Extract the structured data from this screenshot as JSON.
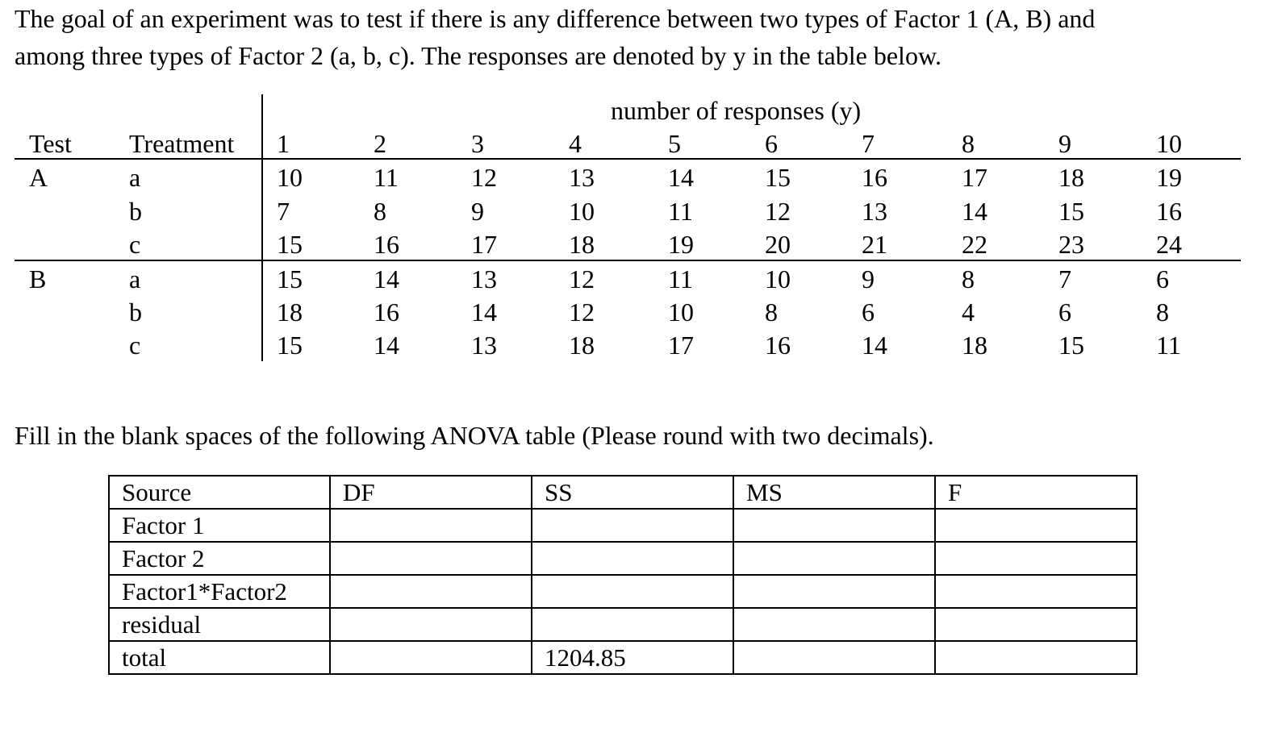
{
  "intro": {
    "line1": "The goal of an experiment was to test if there is any difference between two types of Factor 1 (A, B) and",
    "line2": "among three types of Factor 2 (a, b, c). The responses are denoted by y in the table below."
  },
  "data_table": {
    "group_header": "number of responses (y)",
    "test_header": "Test",
    "treatment_header": "Treatment",
    "columns": [
      "1",
      "2",
      "3",
      "4",
      "5",
      "6",
      "7",
      "8",
      "9",
      "10"
    ],
    "rows": [
      {
        "test": "A",
        "treatment": "a",
        "values": [
          "10",
          "11",
          "12",
          "13",
          "14",
          "15",
          "16",
          "17",
          "18",
          "19"
        ]
      },
      {
        "test": "",
        "treatment": "b",
        "values": [
          "7",
          "8",
          "9",
          "10",
          "11",
          "12",
          "13",
          "14",
          "15",
          "16"
        ]
      },
      {
        "test": "",
        "treatment": "c",
        "values": [
          "15",
          "16",
          "17",
          "18",
          "19",
          "20",
          "21",
          "22",
          "23",
          "24"
        ]
      },
      {
        "test": "B",
        "treatment": "a",
        "values": [
          "15",
          "14",
          "13",
          "12",
          "11",
          "10",
          "9",
          "8",
          "7",
          "6"
        ]
      },
      {
        "test": "",
        "treatment": "b",
        "values": [
          "18",
          "16",
          "14",
          "12",
          "10",
          "8",
          "6",
          "4",
          "6",
          "8"
        ]
      },
      {
        "test": "",
        "treatment": "c",
        "values": [
          "15",
          "14",
          "13",
          "18",
          "17",
          "16",
          "14",
          "18",
          "15",
          "11"
        ]
      }
    ]
  },
  "instruction": "Fill in the blank spaces of the following ANOVA table (Please round with two decimals).",
  "anova": {
    "headers": [
      "Source",
      "DF",
      "SS",
      "MS",
      "F"
    ],
    "rows": [
      [
        "Factor 1",
        "",
        "",
        "",
        ""
      ],
      [
        "Factor 2",
        "",
        "",
        "",
        ""
      ],
      [
        "Factor1*Factor2",
        "",
        "",
        "",
        ""
      ],
      [
        "residual",
        "",
        "",
        "",
        ""
      ],
      [
        "total",
        "",
        "1204.85",
        "",
        ""
      ]
    ]
  }
}
